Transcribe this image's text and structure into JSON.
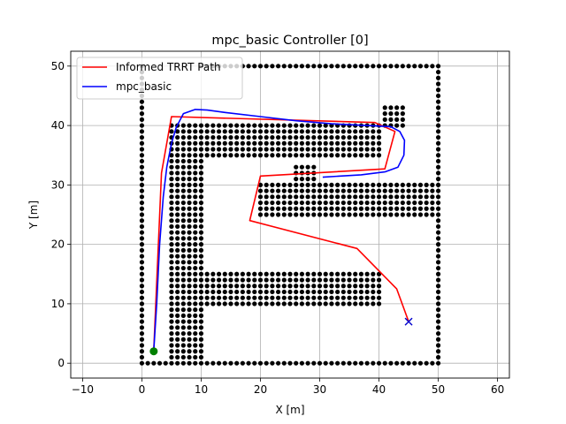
{
  "chart_data": {
    "type": "line",
    "title": "mpc_basic Controller [0]",
    "xlabel": "X [m]",
    "ylabel": "Y [m]",
    "xlim": [
      -12,
      62
    ],
    "ylim": [
      -2.5,
      52.5
    ],
    "xticks": [
      -10,
      0,
      10,
      20,
      30,
      40,
      50,
      60
    ],
    "yticks": [
      0,
      10,
      20,
      30,
      40,
      50
    ],
    "grid": true,
    "legend_position": "top-left",
    "colors": {
      "path": "#ff0000",
      "controller": "#0000ff",
      "obstacle": "#000000",
      "start": "#008000",
      "goal": "#0000cc"
    },
    "series": [
      {
        "name": "Informed TRRT Path",
        "color": "#ff0000",
        "points": [
          [
            45,
            7
          ],
          [
            43,
            12.5
          ],
          [
            36.3,
            19.3
          ],
          [
            18.2,
            24
          ],
          [
            20,
            31.5
          ],
          [
            41,
            32.7
          ],
          [
            42.7,
            39
          ],
          [
            39.3,
            40.5
          ],
          [
            5,
            41.5
          ],
          [
            3.3,
            32
          ],
          [
            2,
            2
          ]
        ]
      },
      {
        "name": "mpc_basic",
        "color": "#0000ff",
        "points": [
          [
            2,
            2
          ],
          [
            2.5,
            10
          ],
          [
            3,
            20
          ],
          [
            3.6,
            28
          ],
          [
            4.2,
            33
          ],
          [
            5,
            37
          ],
          [
            5.8,
            39.7
          ],
          [
            7,
            42
          ],
          [
            9,
            42.7
          ],
          [
            11,
            42.6
          ],
          [
            14,
            42.2
          ],
          [
            20,
            41.5
          ],
          [
            26,
            40.8
          ],
          [
            32,
            40.3
          ],
          [
            38,
            40
          ],
          [
            42,
            39.8
          ],
          [
            43.5,
            39
          ],
          [
            44.3,
            37.5
          ],
          [
            44.2,
            35
          ],
          [
            43.2,
            33
          ],
          [
            41,
            32.2
          ],
          [
            37,
            31.7
          ],
          [
            33.5,
            31.5
          ],
          [
            30.5,
            31.3
          ]
        ]
      }
    ],
    "start": [
      2,
      2
    ],
    "goal": [
      45,
      7
    ],
    "obstacle_rects": [
      {
        "x": [
          0,
          0
        ],
        "y": [
          0,
          50
        ]
      },
      {
        "x": [
          0,
          50
        ],
        "y": [
          0,
          0
        ]
      },
      {
        "x": [
          50,
          50
        ],
        "y": [
          0,
          50
        ]
      },
      {
        "x": [
          10,
          50
        ],
        "y": [
          50,
          50
        ]
      },
      {
        "x": [
          5,
          10
        ],
        "y": [
          0,
          40
        ]
      },
      {
        "x": [
          10,
          40
        ],
        "y": [
          35,
          40
        ]
      },
      {
        "x": [
          10,
          40
        ],
        "y": [
          10,
          15
        ]
      },
      {
        "x": [
          20,
          50
        ],
        "y": [
          25,
          30
        ]
      },
      {
        "x": [
          41,
          44
        ],
        "y": [
          40,
          43
        ]
      },
      {
        "x": [
          26,
          29
        ],
        "y": [
          30,
          33
        ]
      }
    ]
  }
}
